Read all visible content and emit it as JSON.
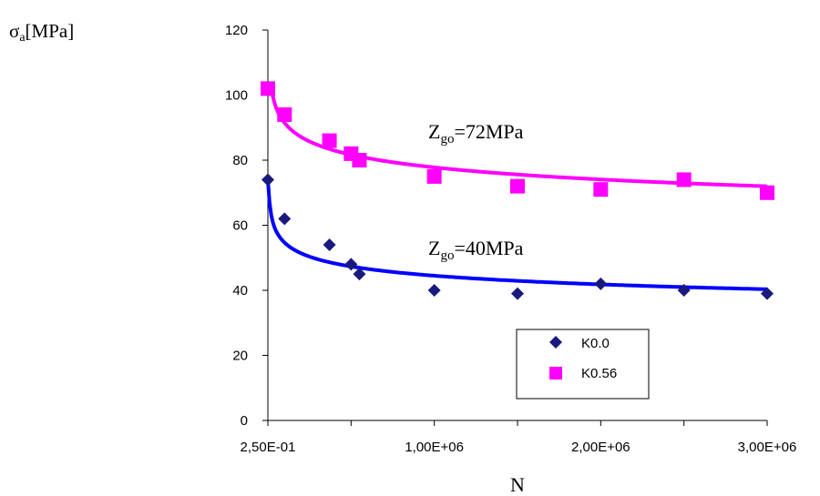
{
  "chart_data": {
    "type": "scatter",
    "ylabel": "σ",
    "ylabel_sub": "a",
    "ylabel_unit": "[MPa]",
    "xlabel": "N",
    "xlim": [
      0.25,
      3000000
    ],
    "ylim": [
      0,
      120
    ],
    "x_ticks": [
      0.25,
      1000000,
      2000000,
      3000000
    ],
    "x_tick_labels": [
      "2,50E-01",
      "1,00E+06",
      "2,00E+06",
      "3,00E+06"
    ],
    "x_minor_ticks": [
      500000,
      1500000,
      2500000
    ],
    "y_ticks": [
      0,
      20,
      40,
      60,
      80,
      100,
      120
    ],
    "y_tick_labels": [
      "0",
      "20",
      "40",
      "60",
      "80",
      "100",
      "120"
    ],
    "grid": false,
    "legend_position": "bottom-right",
    "series": [
      {
        "name": "K0.0",
        "marker": "diamond",
        "color": "#1a1a7e",
        "trend_color": "#0000ff",
        "x": [
          0.25,
          100000,
          370000,
          500000,
          550000,
          1000000,
          1500000,
          2000000,
          2500000,
          3000000
        ],
        "y": [
          74,
          62,
          54,
          48,
          45,
          40,
          39,
          42,
          40,
          39
        ],
        "trend": {
          "type": "power",
          "a": 153,
          "b": -0.0894
        },
        "annotation": {
          "base": "Z",
          "sub": "go",
          "rest": "=40MPa"
        }
      },
      {
        "name": "K0.56",
        "marker": "square",
        "color": "#ff00ff",
        "trend_color": "#ff00ff",
        "x": [
          0.25,
          100000,
          370000,
          500000,
          550000,
          1000000,
          1500000,
          2000000,
          2500000,
          3000000
        ],
        "y": [
          102,
          94,
          86,
          82,
          80,
          75,
          72,
          71,
          74,
          70
        ],
        "trend": {
          "type": "power",
          "a": 206,
          "b": -0.0705
        },
        "annotation": {
          "base": "Z",
          "sub": "go",
          "rest": "=72MPa"
        }
      }
    ]
  }
}
